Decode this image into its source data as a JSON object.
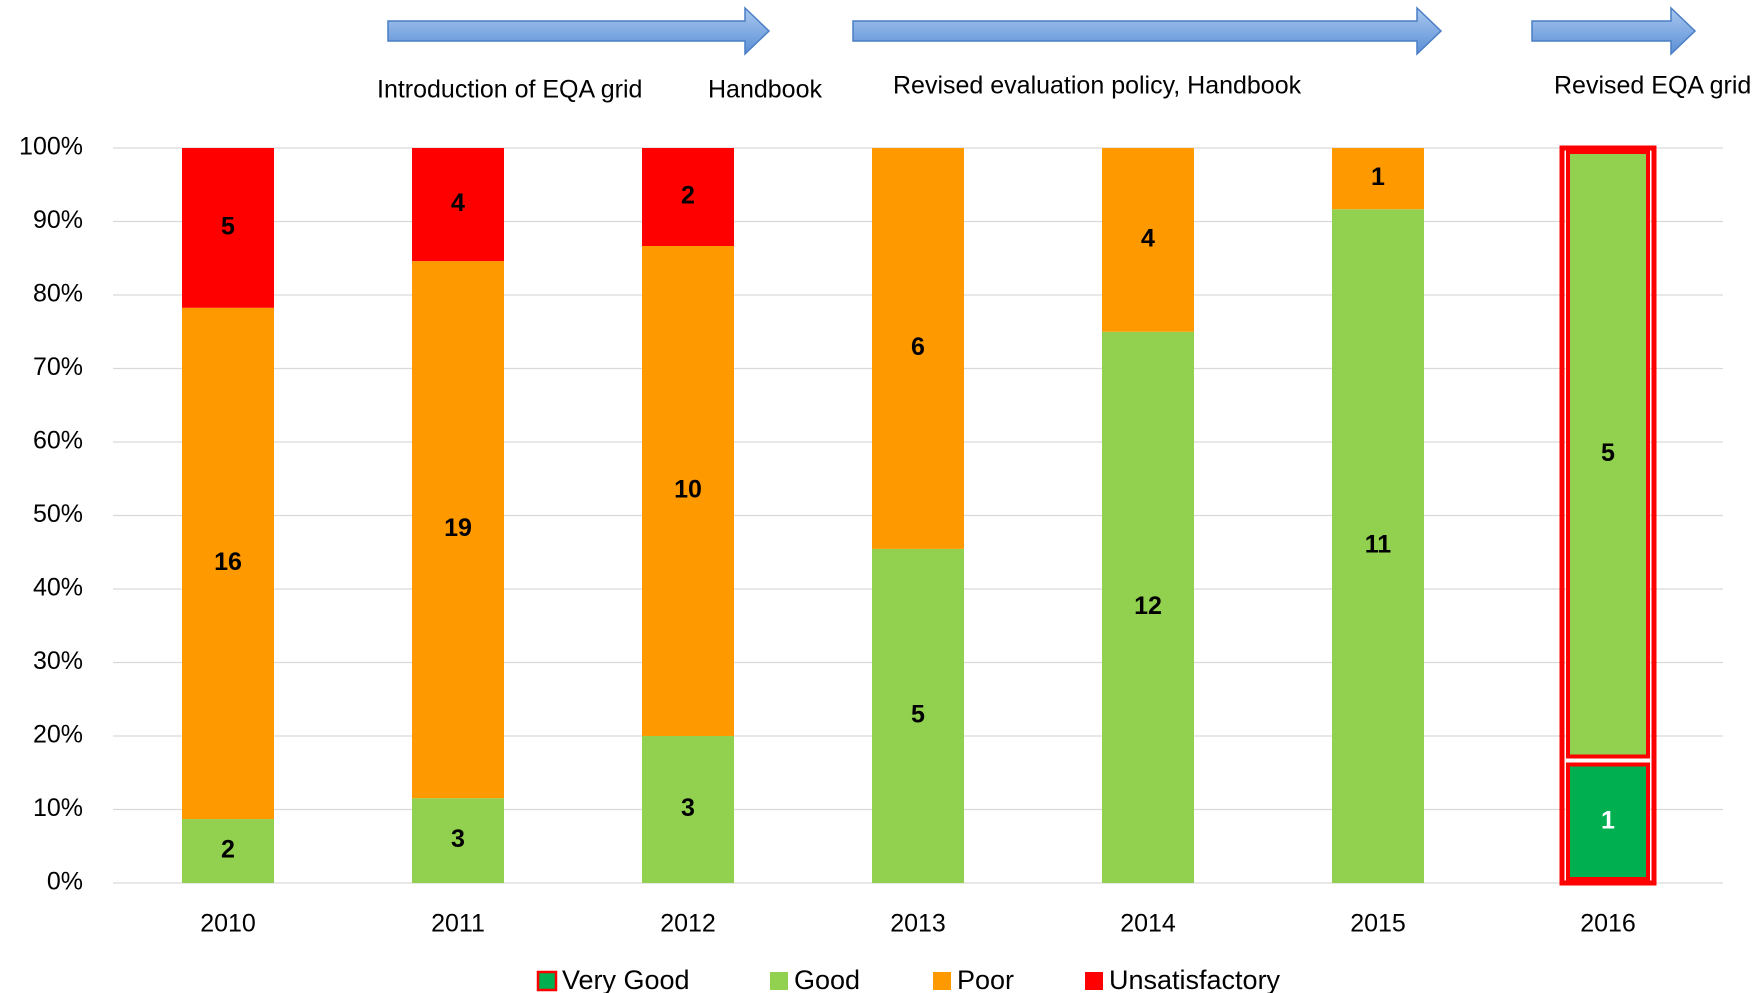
{
  "chart_data": {
    "type": "bar",
    "stacked": true,
    "normalized": true,
    "categories": [
      "2010",
      "2011",
      "2012",
      "2013",
      "2014",
      "2015",
      "2016"
    ],
    "series": [
      {
        "name": "Very Good",
        "color": "#00b050",
        "stroke": "#ff0000",
        "label_color": "#ffffff",
        "values": [
          null,
          null,
          null,
          null,
          null,
          null,
          1
        ]
      },
      {
        "name": "Good",
        "color": "#92d050",
        "label_color": "#000000",
        "values": [
          2,
          3,
          3,
          5,
          12,
          11,
          5
        ]
      },
      {
        "name": "Poor",
        "color": "#ff9900",
        "label_color": "#000000",
        "values": [
          16,
          19,
          10,
          6,
          4,
          1,
          null
        ]
      },
      {
        "name": "Unsatisfactory",
        "color": "#ff0000",
        "label_color": "#000000",
        "values": [
          5,
          4,
          2,
          null,
          null,
          null,
          null
        ]
      }
    ],
    "ylim": [
      0,
      100
    ],
    "yticks": [
      {
        "value": 0,
        "label": "0%"
      },
      {
        "value": 10,
        "label": "10%"
      },
      {
        "value": 20,
        "label": "20%"
      },
      {
        "value": 30,
        "label": "30%"
      },
      {
        "value": 40,
        "label": "40%"
      },
      {
        "value": 50,
        "label": "50%"
      },
      {
        "value": 60,
        "label": "60%"
      },
      {
        "value": 70,
        "label": "70%"
      },
      {
        "value": 80,
        "label": "80%"
      },
      {
        "value": 90,
        "label": "90%"
      },
      {
        "value": 100,
        "label": "100%"
      }
    ],
    "grid": true,
    "highlight_index": 6,
    "legend": "bottom",
    "annotations": [
      "Introduction of EQA grid",
      "Handbook",
      "Revised evaluation policy, Handbook",
      "Revised EQA grid"
    ]
  }
}
